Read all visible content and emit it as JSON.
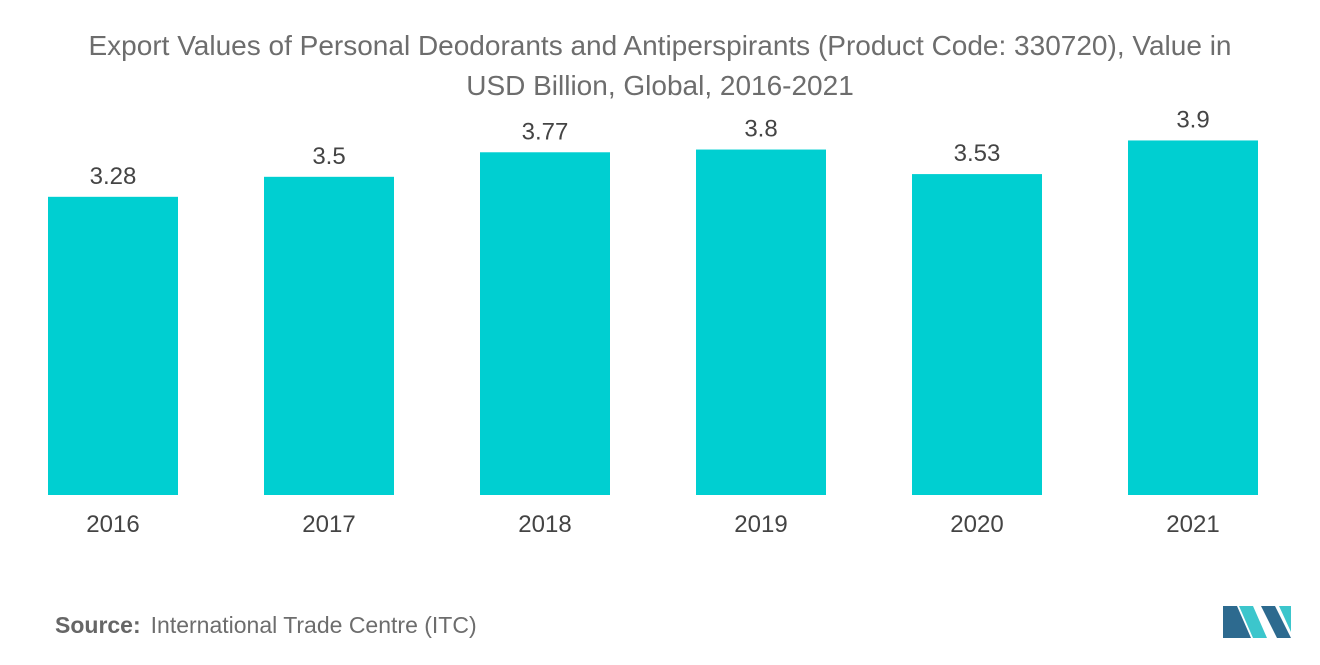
{
  "chart_data": {
    "type": "bar",
    "title_lines": [
      "Export Values of Personal Deodorants and Antiperspirants (Product Code: 330720), Value in",
      "USD Billion, Global, 2016-2021"
    ],
    "categories": [
      "2016",
      "2017",
      "2018",
      "2019",
      "2020",
      "2021"
    ],
    "values": [
      3.28,
      3.5,
      3.77,
      3.8,
      3.53,
      3.9
    ],
    "value_labels": [
      "3.28",
      "3.5",
      "3.77",
      "3.8",
      "3.53",
      "3.9"
    ],
    "xlabel": "",
    "ylabel": "",
    "ylim": [
      0,
      4.4
    ],
    "grid": false,
    "legend": "none",
    "bar_color": "#00cfd1"
  },
  "source": {
    "label": "Source:",
    "text": "International Trade Centre (ITC)"
  },
  "colors": {
    "title": "#6d6d6d",
    "axis_text": "#444444",
    "logo_dark": "#2d6a8f",
    "logo_light": "#3cc6cc"
  }
}
